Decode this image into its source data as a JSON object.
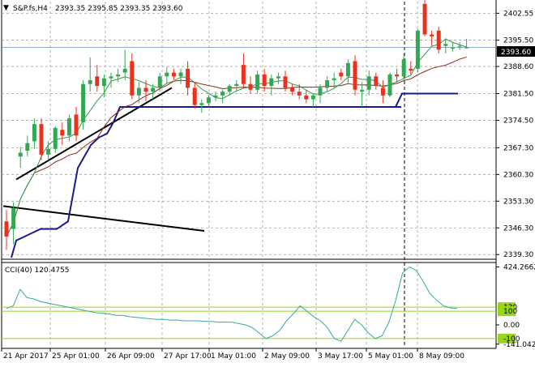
{
  "header": {
    "arrow": "▼",
    "symbol": "S&P.fs,H4",
    "ohlc": "2393.35 2395.85 2393.35 2393.60"
  },
  "current_price_label": "2393.60",
  "indicator": {
    "title": "CCI(40) 120.4755"
  },
  "colors": {
    "bull": "#32a852",
    "bear": "#e8321e",
    "ma_fast": "#2e9e4b",
    "ma_slow": "#8b2b1a",
    "step_line": "#1a1a8c",
    "trend": "#000000",
    "cci": "#35a9a0",
    "level": "#9ad41c",
    "grid": "#a0a0a0",
    "price_line": "#6a8fb0"
  },
  "chart_data": [
    {
      "type": "candlestick",
      "title": "S&P.fs,H4",
      "yaxis_ticks": [
        "2402.55",
        "2395.50",
        "2388.60",
        "2381.50",
        "2374.50",
        "2367.30",
        "2360.30",
        "2353.30",
        "2346.30",
        "2339.30"
      ],
      "ylim": [
        2338.5,
        2405.6
      ],
      "xaxis_ticks": [
        "21 Apr 2017",
        "25 Apr 01:00",
        "26 Apr 09:00",
        "27 Apr 17:00",
        "1 May 01:00",
        "2 May 09:00",
        "3 May 17:00",
        "5 May 01:00",
        "8 May 09:00"
      ],
      "current_price": 2393.6,
      "candles": [
        [
          2348.0,
          2351.0,
          2340.5,
          2344.0
        ],
        [
          2346.0,
          2353.0,
          2342.0,
          2351.5
        ],
        [
          2365.0,
          2367.5,
          2362.0,
          2366.0
        ],
        [
          2366.5,
          2370.5,
          2365.0,
          2368.5
        ],
        [
          2369.0,
          2375.0,
          2367.0,
          2373.5
        ],
        [
          2373.5,
          2375.0,
          2364.0,
          2365.5
        ],
        [
          2365.5,
          2369.0,
          2364.0,
          2367.0
        ],
        [
          2367.0,
          2373.0,
          2366.0,
          2372.5
        ],
        [
          2372.0,
          2374.0,
          2368.0,
          2370.5
        ],
        [
          2370.5,
          2376.0,
          2369.0,
          2375.0
        ],
        [
          2376.0,
          2378.0,
          2369.0,
          2370.5
        ],
        [
          2374.0,
          2385.0,
          2372.0,
          2384.0
        ],
        [
          2384.0,
          2391.0,
          2382.0,
          2385.0
        ],
        [
          2386.0,
          2389.0,
          2382.0,
          2383.5
        ],
        [
          2383.5,
          2386.5,
          2380.5,
          2385.5
        ],
        [
          2385.5,
          2387.0,
          2383.0,
          2386.0
        ],
        [
          2386.0,
          2388.0,
          2384.5,
          2386.5
        ],
        [
          2387.0,
          2393.0,
          2385.0,
          2388.0
        ],
        [
          2390.0,
          2392.0,
          2380.0,
          2381.0
        ],
        [
          2381.0,
          2384.5,
          2379.0,
          2383.0
        ],
        [
          2383.0,
          2385.0,
          2379.5,
          2382.0
        ],
        [
          2382.0,
          2384.0,
          2380.0,
          2383.0
        ],
        [
          2383.0,
          2387.0,
          2382.0,
          2386.0
        ],
        [
          2386.0,
          2388.5,
          2384.0,
          2387.0
        ],
        [
          2387.0,
          2388.0,
          2385.0,
          2386.0
        ],
        [
          2386.0,
          2388.0,
          2384.0,
          2387.0
        ],
        [
          2388.0,
          2390.0,
          2381.0,
          2383.0
        ],
        [
          2383.0,
          2384.5,
          2377.5,
          2378.5
        ],
        [
          2378.5,
          2380.0,
          2376.5,
          2379.0
        ],
        [
          2379.0,
          2381.0,
          2378.0,
          2380.5
        ],
        [
          2380.5,
          2382.0,
          2379.5,
          2381.0
        ],
        [
          2381.0,
          2382.5,
          2379.0,
          2382.0
        ],
        [
          2382.0,
          2384.0,
          2381.0,
          2383.5
        ],
        [
          2383.5,
          2385.0,
          2382.0,
          2384.0
        ],
        [
          2389.0,
          2392.0,
          2383.0,
          2384.0
        ],
        [
          2384.0,
          2386.0,
          2381.5,
          2382.5
        ],
        [
          2382.5,
          2387.5,
          2381.5,
          2386.5
        ],
        [
          2386.5,
          2388.0,
          2382.0,
          2383.5
        ],
        [
          2383.5,
          2386.5,
          2381.0,
          2385.5
        ],
        [
          2385.5,
          2387.0,
          2384.0,
          2386.0
        ],
        [
          2386.0,
          2387.5,
          2382.0,
          2383.0
        ],
        [
          2383.0,
          2384.0,
          2381.0,
          2382.0
        ],
        [
          2382.0,
          2384.0,
          2380.0,
          2381.0
        ],
        [
          2381.0,
          2382.5,
          2379.0,
          2380.0
        ],
        [
          2380.0,
          2381.5,
          2378.0,
          2381.0
        ],
        [
          2381.0,
          2384.0,
          2379.0,
          2383.0
        ],
        [
          2383.0,
          2386.0,
          2382.0,
          2385.0
        ],
        [
          2385.0,
          2387.0,
          2383.0,
          2385.5
        ],
        [
          2387.0,
          2388.0,
          2385.0,
          2386.0
        ],
        [
          2386.0,
          2390.5,
          2384.0,
          2389.5
        ],
        [
          2390.0,
          2391.5,
          2381.0,
          2382.5
        ],
        [
          2382.0,
          2384.5,
          2378.0,
          2382.5
        ],
        [
          2382.5,
          2387.5,
          2381.0,
          2386.0
        ],
        [
          2386.0,
          2387.0,
          2382.5,
          2383.5
        ],
        [
          2383.0,
          2385.0,
          2379.0,
          2381.0
        ],
        [
          2381.0,
          2387.0,
          2380.5,
          2386.5
        ],
        [
          2386.5,
          2388.0,
          2384.5,
          2386.0
        ],
        [
          2386.0,
          2392.0,
          2385.0,
          2390.5
        ],
        [
          2388.0,
          2390.0,
          2386.5,
          2387.5
        ],
        [
          2388.0,
          2398.5,
          2387.0,
          2398.0
        ],
        [
          2405.0,
          2406.0,
          2396.5,
          2397.0
        ],
        [
          2397.0,
          2398.0,
          2394.0,
          2396.5
        ],
        [
          2398.0,
          2399.0,
          2392.0,
          2393.0
        ],
        [
          2394.0,
          2396.0,
          2392.0,
          2394.5
        ],
        [
          2393.5,
          2395.0,
          2392.5,
          2393.5
        ],
        [
          2394.0,
          2395.0,
          2393.0,
          2394.0
        ],
        [
          2393.35,
          2395.85,
          2393.35,
          2393.6
        ]
      ]
    },
    {
      "type": "line",
      "title": "CCI(40) 120.4755",
      "yaxis_ticks": [
        "424.2662",
        "130",
        "100",
        "0.00",
        "-100",
        "-141.0421"
      ],
      "ylim": [
        -160,
        445
      ],
      "levels": [
        130,
        100,
        -100
      ],
      "values": [
        120,
        140,
        260,
        200,
        190,
        170,
        160,
        150,
        140,
        130,
        120,
        110,
        100,
        90,
        85,
        80,
        70,
        70,
        60,
        55,
        50,
        45,
        40,
        40,
        35,
        35,
        30,
        30,
        30,
        25,
        25,
        20,
        20,
        20,
        10,
        0,
        -20,
        -60,
        -100,
        -80,
        -40,
        30,
        80,
        140,
        100,
        60,
        30,
        -20,
        -100,
        -120,
        -40,
        40,
        0,
        -60,
        -100,
        -80,
        20,
        180,
        380,
        424,
        400,
        320,
        230,
        180,
        140,
        125,
        120
      ]
    }
  ]
}
